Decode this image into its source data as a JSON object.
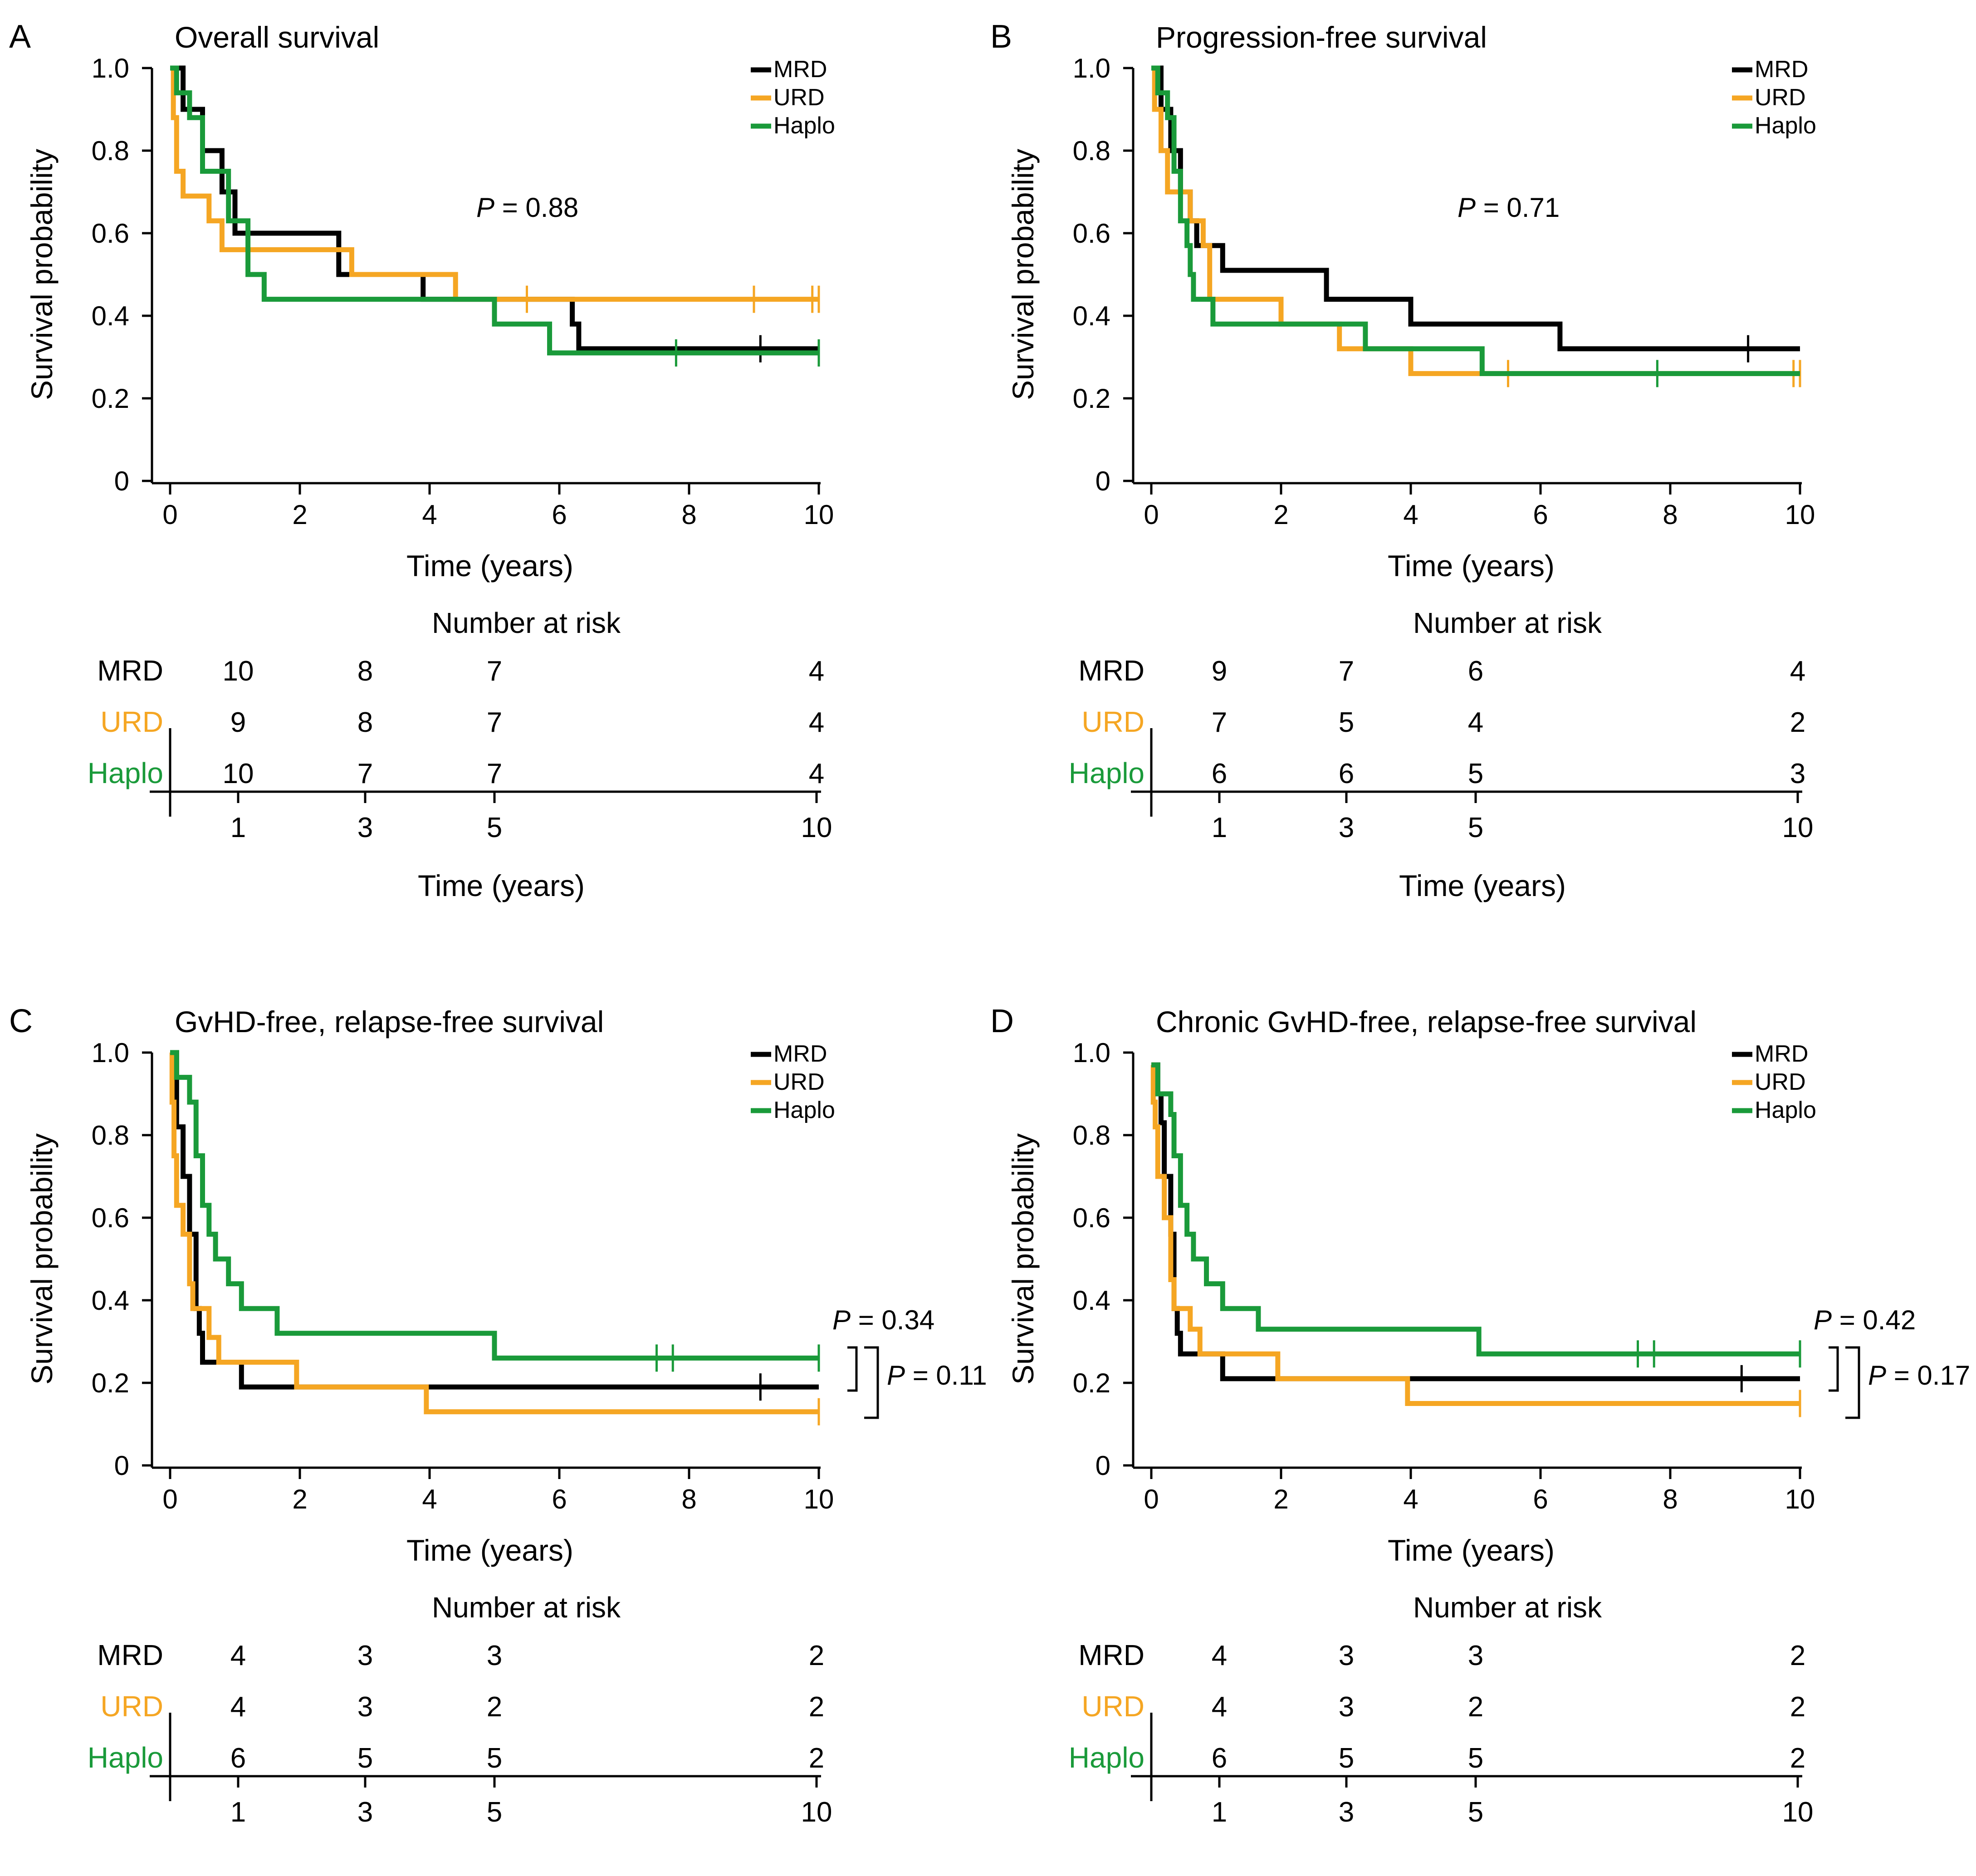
{
  "colors": {
    "MRD": "#000000",
    "URD": "#f5a623",
    "Haplo": "#1a9a3a"
  },
  "chart_data": [
    {
      "type": "line",
      "panel": "A",
      "title": "Overall survival",
      "xlabel": "Time (years)",
      "ylabel": "Survival probability",
      "xlim": [
        0,
        10
      ],
      "ylim": [
        0,
        1
      ],
      "xticks": [
        "0",
        "2",
        "4",
        "6",
        "8",
        "10"
      ],
      "yticks": [
        "0",
        "0.2",
        "0.4",
        "0.6",
        "0.8",
        "1.0"
      ],
      "legend": [
        "MRD",
        "URD",
        "Haplo"
      ],
      "pvalues": [
        {
          "label": "P",
          "value": "= 0.88"
        }
      ],
      "series": [
        {
          "name": "MRD",
          "steps": [
            [
              0,
              1.0
            ],
            [
              0.2,
              0.9
            ],
            [
              0.5,
              0.8
            ],
            [
              0.8,
              0.7
            ],
            [
              1.0,
              0.6
            ],
            [
              2.6,
              0.5
            ],
            [
              3.9,
              0.44
            ],
            [
              6.2,
              0.38
            ],
            [
              6.3,
              0.32
            ],
            [
              10,
              0.32
            ]
          ],
          "censor": [
            9.1
          ]
        },
        {
          "name": "URD",
          "steps": [
            [
              0,
              1.0
            ],
            [
              0.05,
              0.88
            ],
            [
              0.1,
              0.75
            ],
            [
              0.2,
              0.69
            ],
            [
              0.6,
              0.63
            ],
            [
              0.8,
              0.56
            ],
            [
              2.8,
              0.5
            ],
            [
              4.4,
              0.44
            ],
            [
              10,
              0.44
            ]
          ],
          "censor": [
            5.5,
            9.0,
            9.9,
            10.0
          ]
        },
        {
          "name": "Haplo",
          "steps": [
            [
              0,
              1.0
            ],
            [
              0.1,
              0.94
            ],
            [
              0.3,
              0.88
            ],
            [
              0.5,
              0.75
            ],
            [
              0.9,
              0.63
            ],
            [
              1.2,
              0.5
            ],
            [
              1.45,
              0.44
            ],
            [
              5.0,
              0.38
            ],
            [
              5.85,
              0.31
            ],
            [
              10,
              0.31
            ]
          ],
          "censor": [
            7.8,
            10.0
          ]
        }
      ],
      "risk_table": {
        "title": "Number at risk",
        "xlabel": "Time (years)",
        "times": [
          "1",
          "3",
          "5",
          "10"
        ],
        "rows": [
          {
            "group": "MRD",
            "values": [
              "10",
              "8",
              "7",
              "4"
            ]
          },
          {
            "group": "URD",
            "values": [
              "9",
              "8",
              "7",
              "4"
            ]
          },
          {
            "group": "Haplo",
            "values": [
              "10",
              "7",
              "7",
              "4"
            ]
          }
        ]
      }
    },
    {
      "type": "line",
      "panel": "B",
      "title": "Progression-free survival",
      "xlabel": "Time (years)",
      "ylabel": "Survival probability",
      "xlim": [
        0,
        10
      ],
      "ylim": [
        0,
        1
      ],
      "xticks": [
        "0",
        "2",
        "4",
        "6",
        "8",
        "10"
      ],
      "yticks": [
        "0",
        "0.2",
        "0.4",
        "0.6",
        "0.8",
        "1.0"
      ],
      "legend": [
        "MRD",
        "URD",
        "Haplo"
      ],
      "pvalues": [
        {
          "label": "P",
          "value": "= 0.71"
        }
      ],
      "series": [
        {
          "name": "MRD",
          "steps": [
            [
              0,
              1.0
            ],
            [
              0.15,
              0.9
            ],
            [
              0.3,
              0.8
            ],
            [
              0.45,
              0.7
            ],
            [
              0.6,
              0.63
            ],
            [
              0.7,
              0.57
            ],
            [
              1.1,
              0.51
            ],
            [
              2.7,
              0.44
            ],
            [
              4.0,
              0.38
            ],
            [
              6.3,
              0.32
            ],
            [
              10,
              0.32
            ]
          ],
          "censor": [
            9.2
          ]
        },
        {
          "name": "URD",
          "steps": [
            [
              0,
              1.0
            ],
            [
              0.05,
              0.9
            ],
            [
              0.15,
              0.8
            ],
            [
              0.25,
              0.7
            ],
            [
              0.6,
              0.63
            ],
            [
              0.8,
              0.57
            ],
            [
              0.9,
              0.44
            ],
            [
              2.0,
              0.38
            ],
            [
              2.9,
              0.32
            ],
            [
              4.0,
              0.26
            ],
            [
              10,
              0.26
            ]
          ],
          "censor": [
            5.5,
            9.9,
            10.0
          ]
        },
        {
          "name": "Haplo",
          "steps": [
            [
              0,
              1.0
            ],
            [
              0.1,
              0.94
            ],
            [
              0.25,
              0.88
            ],
            [
              0.35,
              0.75
            ],
            [
              0.45,
              0.63
            ],
            [
              0.55,
              0.57
            ],
            [
              0.6,
              0.5
            ],
            [
              0.65,
              0.44
            ],
            [
              0.95,
              0.38
            ],
            [
              3.3,
              0.32
            ],
            [
              5.1,
              0.26
            ],
            [
              10,
              0.26
            ]
          ],
          "censor": [
            7.8
          ]
        }
      ],
      "risk_table": {
        "title": "Number at risk",
        "xlabel": "Time (years)",
        "times": [
          "1",
          "3",
          "5",
          "10"
        ],
        "rows": [
          {
            "group": "MRD",
            "values": [
              "9",
              "7",
              "6",
              "4"
            ]
          },
          {
            "group": "URD",
            "values": [
              "7",
              "5",
              "4",
              "2"
            ]
          },
          {
            "group": "Haplo",
            "values": [
              "6",
              "6",
              "5",
              "3"
            ]
          }
        ]
      }
    },
    {
      "type": "line",
      "panel": "C",
      "title": "GvHD-free, relapse-free survival",
      "xlabel": "Time (years)",
      "ylabel": "Survival probability",
      "xlim": [
        0,
        10
      ],
      "ylim": [
        0,
        1
      ],
      "xticks": [
        "0",
        "2",
        "4",
        "6",
        "8",
        "10"
      ],
      "yticks": [
        "0",
        "0.2",
        "0.4",
        "0.6",
        "0.8",
        "1.0"
      ],
      "legend": [
        "MRD",
        "URD",
        "Haplo"
      ],
      "pvalues": [
        {
          "label": "P",
          "value": "= 0.34"
        },
        {
          "label": "P",
          "value": "= 0.11"
        }
      ],
      "series": [
        {
          "name": "MRD",
          "steps": [
            [
              0,
              1.0
            ],
            [
              0.1,
              0.82
            ],
            [
              0.2,
              0.7
            ],
            [
              0.3,
              0.56
            ],
            [
              0.4,
              0.38
            ],
            [
              0.45,
              0.32
            ],
            [
              0.5,
              0.25
            ],
            [
              1.1,
              0.19
            ],
            [
              10,
              0.19
            ]
          ],
          "censor": [
            9.1
          ]
        },
        {
          "name": "URD",
          "steps": [
            [
              0,
              1.0
            ],
            [
              0.03,
              0.88
            ],
            [
              0.06,
              0.75
            ],
            [
              0.1,
              0.63
            ],
            [
              0.2,
              0.56
            ],
            [
              0.3,
              0.44
            ],
            [
              0.35,
              0.38
            ],
            [
              0.6,
              0.31
            ],
            [
              0.75,
              0.25
            ],
            [
              1.95,
              0.19
            ],
            [
              3.95,
              0.13
            ],
            [
              10,
              0.13
            ]
          ],
          "censor": [
            10.0
          ]
        },
        {
          "name": "Haplo",
          "steps": [
            [
              0,
              1.0
            ],
            [
              0.1,
              0.94
            ],
            [
              0.3,
              0.88
            ],
            [
              0.4,
              0.75
            ],
            [
              0.5,
              0.63
            ],
            [
              0.6,
              0.56
            ],
            [
              0.7,
              0.5
            ],
            [
              0.9,
              0.44
            ],
            [
              1.1,
              0.38
            ],
            [
              1.65,
              0.32
            ],
            [
              5.0,
              0.26
            ],
            [
              10,
              0.26
            ]
          ],
          "censor": [
            7.5,
            7.75,
            10.0
          ]
        }
      ],
      "risk_table": {
        "title": "Number at risk",
        "xlabel": "",
        "times": [
          "1",
          "3",
          "5",
          "10"
        ],
        "rows": [
          {
            "group": "MRD",
            "values": [
              "4",
              "3",
              "3",
              "2"
            ]
          },
          {
            "group": "URD",
            "values": [
              "4",
              "3",
              "2",
              "2"
            ]
          },
          {
            "group": "Haplo",
            "values": [
              "6",
              "5",
              "5",
              "2"
            ]
          }
        ]
      }
    },
    {
      "type": "line",
      "panel": "D",
      "title": "Chronic GvHD-free, relapse-free survival",
      "xlabel": "Time (years)",
      "ylabel": "Survival probability",
      "xlim": [
        0,
        10
      ],
      "ylim": [
        0,
        1
      ],
      "xticks": [
        "0",
        "2",
        "4",
        "6",
        "8",
        "10"
      ],
      "yticks": [
        "0",
        "0.2",
        "0.4",
        "0.6",
        "0.8",
        "1.0"
      ],
      "legend": [
        "MRD",
        "URD",
        "Haplo"
      ],
      "pvalues": [
        {
          "label": "P",
          "value": "= 0.42"
        },
        {
          "label": "P",
          "value": "= 0.17"
        }
      ],
      "series": [
        {
          "name": "MRD",
          "steps": [
            [
              0,
              0.97
            ],
            [
              0.1,
              0.9
            ],
            [
              0.15,
              0.83
            ],
            [
              0.2,
              0.7
            ],
            [
              0.3,
              0.56
            ],
            [
              0.35,
              0.38
            ],
            [
              0.4,
              0.32
            ],
            [
              0.45,
              0.27
            ],
            [
              1.1,
              0.21
            ],
            [
              10,
              0.21
            ]
          ],
          "censor": [
            9.1
          ]
        },
        {
          "name": "URD",
          "steps": [
            [
              0,
              0.97
            ],
            [
              0.03,
              0.88
            ],
            [
              0.06,
              0.82
            ],
            [
              0.1,
              0.7
            ],
            [
              0.2,
              0.6
            ],
            [
              0.3,
              0.45
            ],
            [
              0.35,
              0.38
            ],
            [
              0.6,
              0.33
            ],
            [
              0.75,
              0.27
            ],
            [
              1.95,
              0.21
            ],
            [
              3.95,
              0.15
            ],
            [
              10,
              0.15
            ]
          ],
          "censor": [
            10.0
          ]
        },
        {
          "name": "Haplo",
          "steps": [
            [
              0,
              0.97
            ],
            [
              0.1,
              0.9
            ],
            [
              0.3,
              0.85
            ],
            [
              0.35,
              0.75
            ],
            [
              0.45,
              0.63
            ],
            [
              0.55,
              0.56
            ],
            [
              0.65,
              0.5
            ],
            [
              0.85,
              0.44
            ],
            [
              1.1,
              0.38
            ],
            [
              1.65,
              0.33
            ],
            [
              5.05,
              0.27
            ],
            [
              10,
              0.27
            ]
          ],
          "censor": [
            7.5,
            7.75,
            10.0
          ]
        }
      ],
      "risk_table": {
        "title": "Number at risk",
        "xlabel": "",
        "times": [
          "1",
          "3",
          "5",
          "10"
        ],
        "rows": [
          {
            "group": "MRD",
            "values": [
              "4",
              "3",
              "3",
              "2"
            ]
          },
          {
            "group": "URD",
            "values": [
              "4",
              "3",
              "2",
              "2"
            ]
          },
          {
            "group": "Haplo",
            "values": [
              "6",
              "5",
              "5",
              "2"
            ]
          }
        ]
      }
    }
  ]
}
